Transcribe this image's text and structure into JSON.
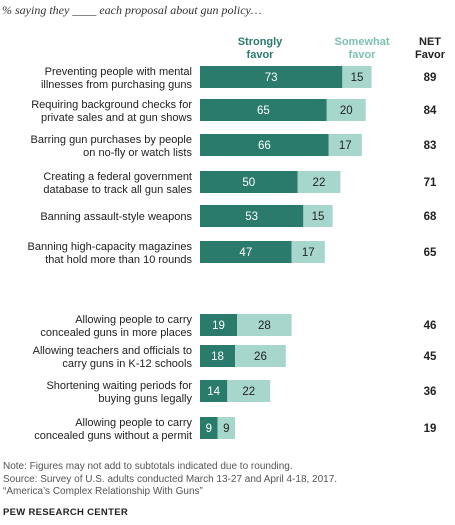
{
  "subtitle": "% saying they ____ each proposal about gun policy…",
  "colors": {
    "strong": "#2a7b6c",
    "somewhat": "#a7d7cc",
    "strong_text": "#2a7b6c",
    "somewhat_text": "#7cc1b1"
  },
  "chart_data": {
    "type": "bar",
    "orientation": "horizontal",
    "stacked": true,
    "legend": [
      "Strongly favor",
      "Somewhat favor"
    ],
    "net_header": "NET Favor",
    "xlim": [
      0,
      100
    ],
    "categories": [
      "Preventing people with mental illnesses from purchasing guns",
      "Requiring background checks for private sales and at gun shows",
      "Barring gun purchases by people on no-fly or watch lists",
      "Creating a federal government database to track all gun sales",
      "Banning assault-style weapons",
      "Banning high-capacity magazines that hold more than 10 rounds",
      "Allowing people to carry concealed guns in more places",
      "Allowing teachers and officials to carry guns in K-12 schools",
      "Shortening waiting periods for buying guns legally",
      "Allowing people to carry concealed guns without a permit"
    ],
    "series": [
      {
        "name": "Strongly favor",
        "values": [
          73,
          65,
          66,
          50,
          53,
          47,
          19,
          18,
          14,
          9
        ]
      },
      {
        "name": "Somewhat favor",
        "values": [
          15,
          20,
          17,
          22,
          15,
          17,
          28,
          26,
          22,
          9
        ]
      }
    ],
    "net": [
      89,
      84,
      83,
      71,
      68,
      65,
      46,
      45,
      36,
      19
    ]
  },
  "footer": {
    "note": "Note: Figures may not add to subtotals indicated due to rounding.",
    "source": "Source: Survey of U.S. adults conducted March 13-27 and April 4-18, 2017.",
    "report": "“America’s Complex Relationship With Guns”",
    "brand": "PEW RESEARCH CENTER"
  }
}
